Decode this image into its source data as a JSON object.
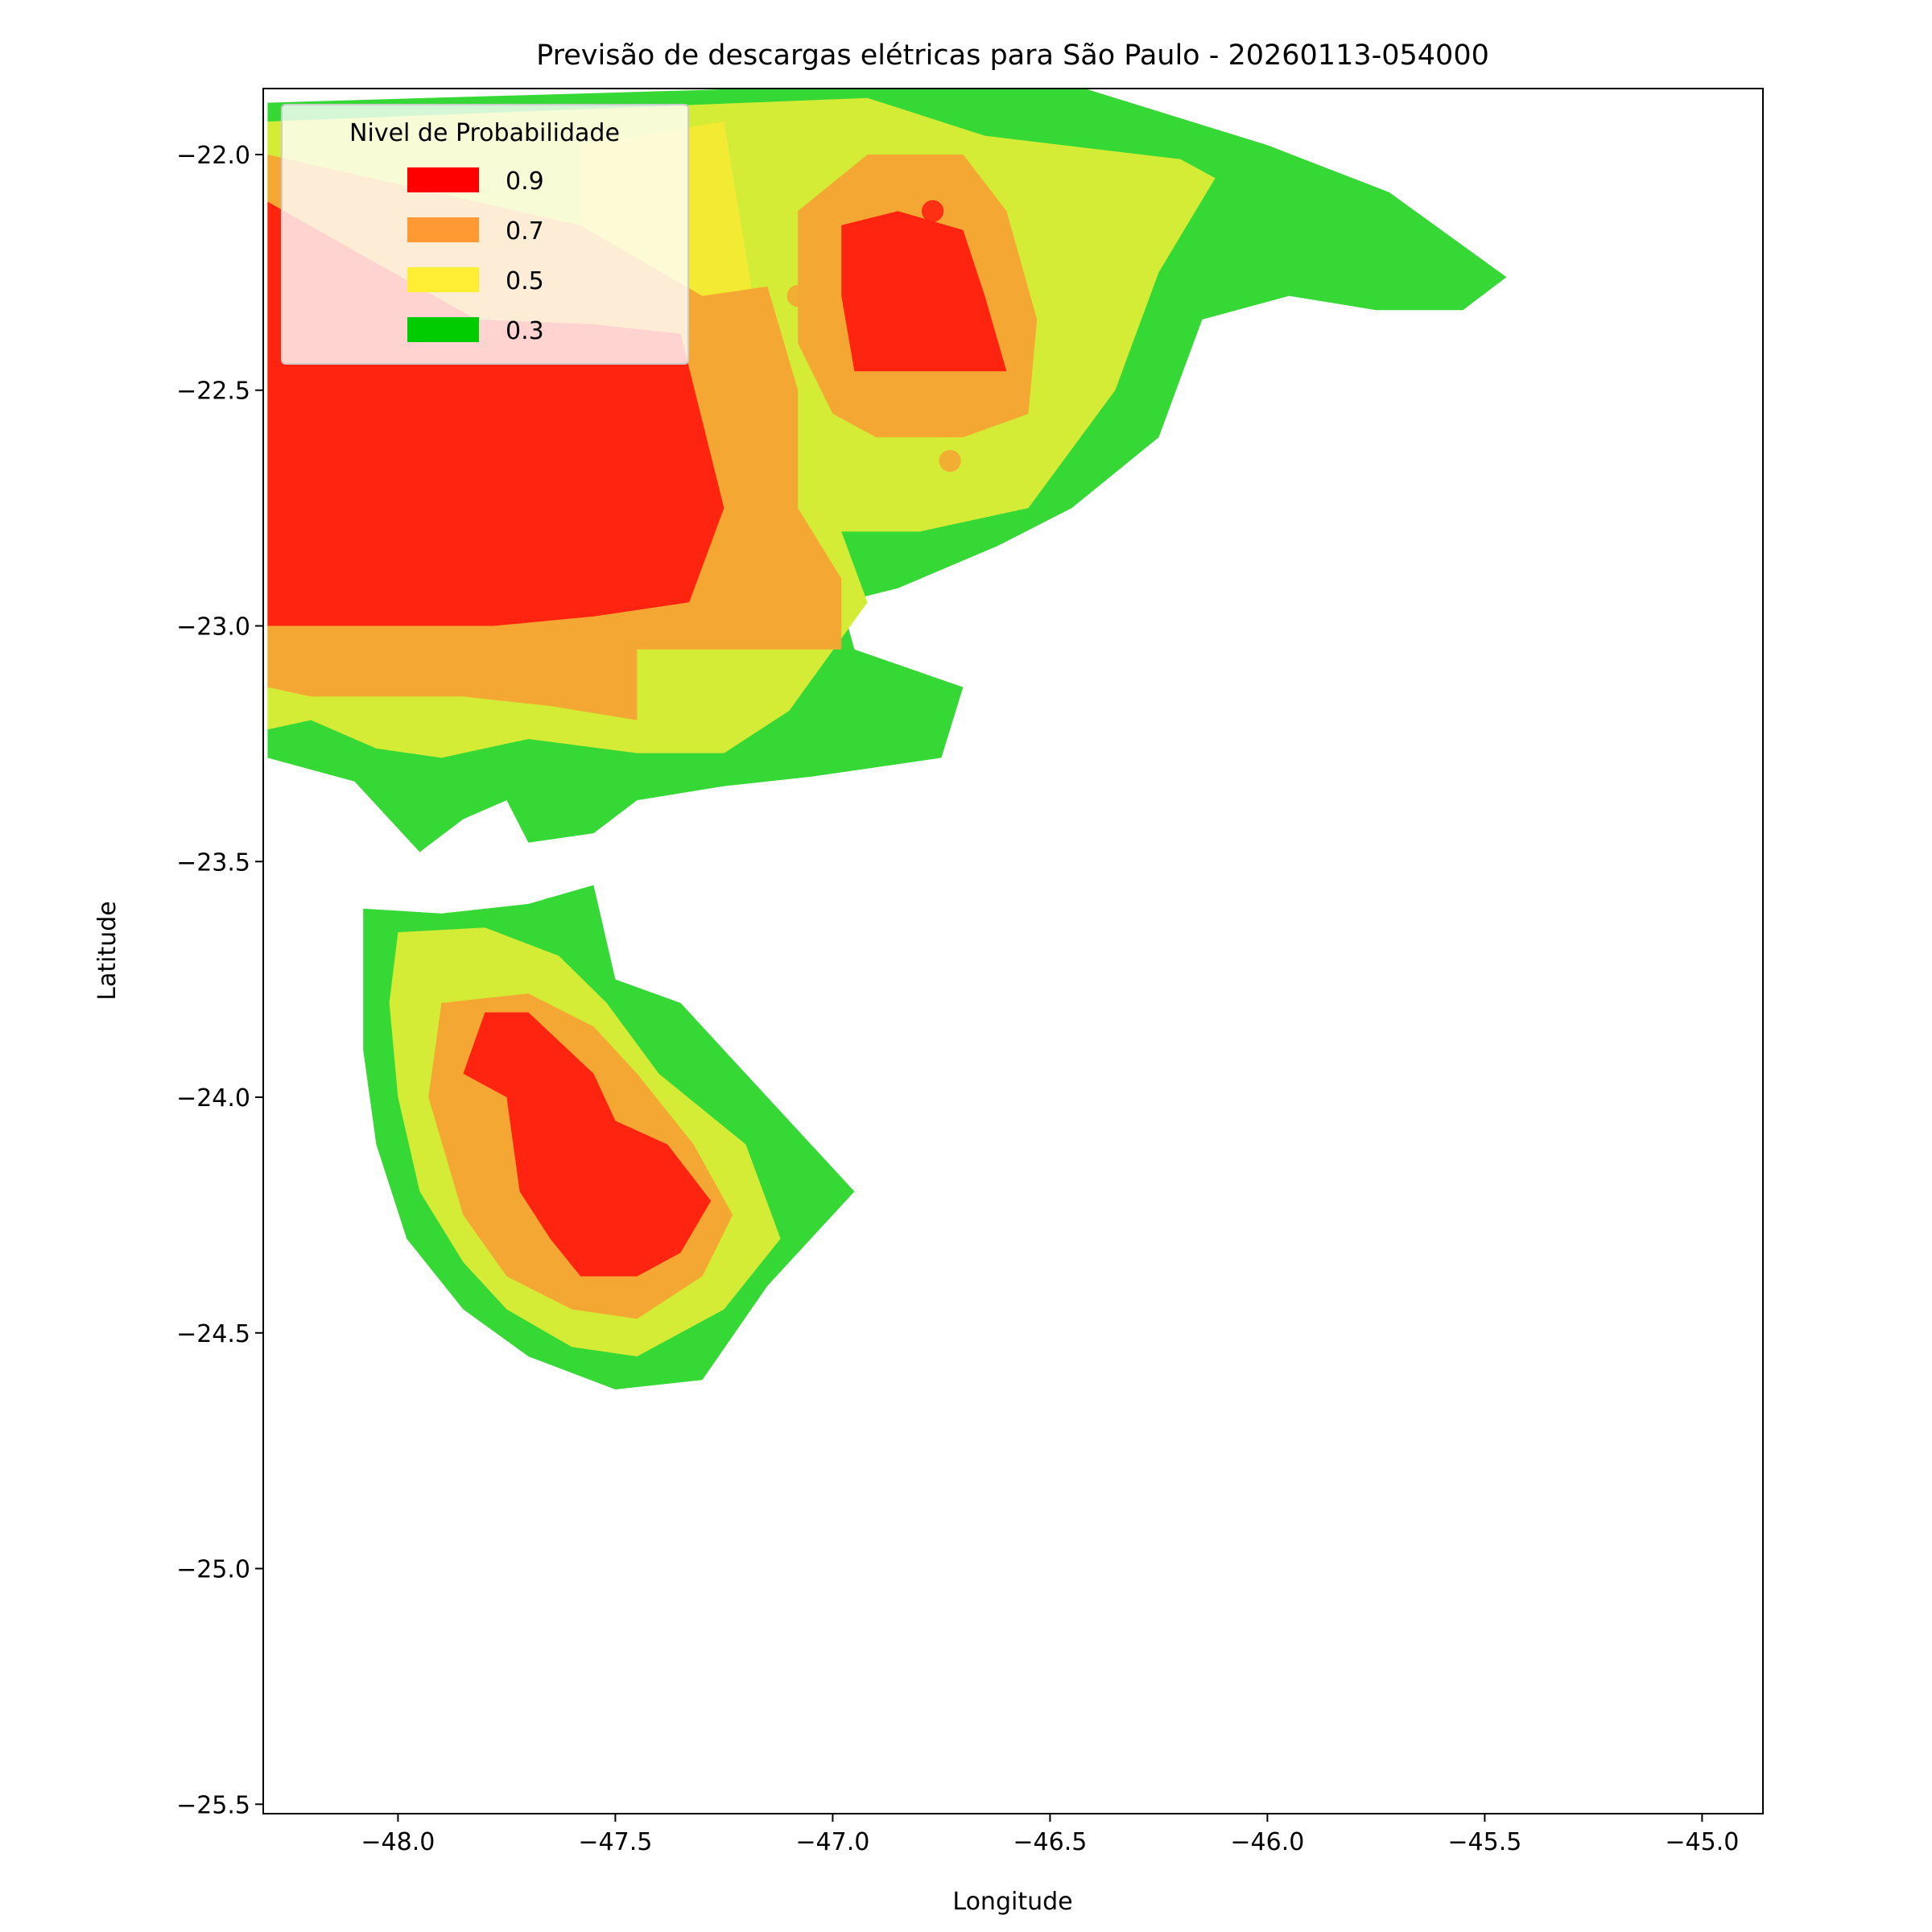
{
  "chart_data": {
    "type": "heatmap",
    "title": "Previsão de descargas elétricas para São Paulo - 20260113-054000",
    "xlabel": "Longitude",
    "ylabel": "Latitude",
    "xlim": [
      -48.31,
      -44.86
    ],
    "ylim": [
      -25.52,
      -21.86
    ],
    "xticks": [
      -48.0,
      -47.5,
      -47.0,
      -46.5,
      -46.0,
      -45.5,
      -45.0
    ],
    "xtick_labels": [
      "−48.0",
      "−47.5",
      "−47.0",
      "−46.5",
      "−46.0",
      "−45.5",
      "−45.0"
    ],
    "yticks": [
      -22.0,
      -22.5,
      -23.0,
      -23.5,
      -24.0,
      -24.5,
      -25.0,
      -25.5
    ],
    "ytick_labels": [
      "−22.0",
      "−22.5",
      "−23.0",
      "−23.5",
      "−24.0",
      "−24.5",
      "−25.0",
      "−25.5"
    ],
    "grid": false,
    "legend": {
      "title": "Nivel de Probabilidade",
      "placement": "upper-left",
      "entries": [
        {
          "label": "0.9",
          "color": "#ff0000"
        },
        {
          "label": "0.7",
          "color": "#ff9933"
        },
        {
          "label": "0.5",
          "color": "#ffee33"
        },
        {
          "label": "0.3",
          "color": "#00cc00"
        }
      ]
    },
    "level_colors": {
      "0.3": "#36d836",
      "0.5": "#d4ec36",
      "0.7": "#f5a733",
      "0.9": "#ff2410",
      "0.5_bright": "#f3ea33"
    },
    "regions": [
      {
        "level": "0.3",
        "cells": [
          [
            -48.3,
            -21.89
          ],
          [
            -46.82,
            -21.85
          ],
          [
            -46.42,
            -21.86
          ],
          [
            -46.0,
            -21.98
          ],
          [
            -45.72,
            -22.08
          ],
          [
            -45.45,
            -22.26
          ],
          [
            -45.55,
            -22.33
          ],
          [
            -45.75,
            -22.33
          ],
          [
            -45.95,
            -22.3
          ],
          [
            -46.15,
            -22.35
          ],
          [
            -46.25,
            -22.6
          ],
          [
            -46.45,
            -22.75
          ],
          [
            -46.62,
            -22.83
          ],
          [
            -46.85,
            -22.92
          ],
          [
            -46.98,
            -22.95
          ],
          [
            -46.95,
            -23.05
          ],
          [
            -46.7,
            -23.13
          ],
          [
            -46.75,
            -23.28
          ],
          [
            -47.05,
            -23.32
          ],
          [
            -47.25,
            -23.34
          ],
          [
            -47.45,
            -23.37
          ],
          [
            -47.55,
            -23.44
          ],
          [
            -47.7,
            -23.46
          ],
          [
            -47.75,
            -23.37
          ],
          [
            -47.85,
            -23.41
          ],
          [
            -47.95,
            -23.48
          ],
          [
            -48.0,
            -23.43
          ],
          [
            -48.1,
            -23.33
          ],
          [
            -48.3,
            -23.28
          ]
        ]
      },
      {
        "level": "0.5",
        "cells": [
          [
            -48.3,
            -21.93
          ],
          [
            -46.92,
            -21.88
          ],
          [
            -46.65,
            -21.96
          ],
          [
            -46.2,
            -22.01
          ],
          [
            -46.12,
            -22.05
          ],
          [
            -46.25,
            -22.25
          ],
          [
            -46.35,
            -22.5
          ],
          [
            -46.55,
            -22.75
          ],
          [
            -46.8,
            -22.8
          ],
          [
            -46.98,
            -22.8
          ],
          [
            -46.92,
            -22.95
          ],
          [
            -47.1,
            -23.18
          ],
          [
            -47.25,
            -23.27
          ],
          [
            -47.45,
            -23.27
          ],
          [
            -47.7,
            -23.24
          ],
          [
            -47.9,
            -23.28
          ],
          [
            -48.05,
            -23.26
          ],
          [
            -48.2,
            -23.2
          ],
          [
            -48.3,
            -23.22
          ]
        ]
      },
      {
        "level": "0.5_bright",
        "cells": [
          [
            -47.58,
            -21.98
          ],
          [
            -47.25,
            -21.93
          ],
          [
            -47.18,
            -22.32
          ],
          [
            -47.45,
            -22.3
          ],
          [
            -47.58,
            -22.2
          ]
        ]
      },
      {
        "level": "0.7",
        "cells": [
          [
            -48.3,
            -22.0
          ],
          [
            -47.58,
            -22.15
          ],
          [
            -47.3,
            -22.3
          ],
          [
            -47.15,
            -22.28
          ],
          [
            -47.08,
            -22.5
          ],
          [
            -47.08,
            -22.75
          ],
          [
            -46.98,
            -22.9
          ],
          [
            -46.98,
            -23.05
          ],
          [
            -47.25,
            -23.05
          ],
          [
            -47.45,
            -23.05
          ],
          [
            -47.45,
            -23.2
          ],
          [
            -47.65,
            -23.17
          ],
          [
            -47.85,
            -23.15
          ],
          [
            -48.05,
            -23.15
          ],
          [
            -48.2,
            -23.15
          ],
          [
            -48.3,
            -23.13
          ]
        ]
      },
      {
        "level": "0.7",
        "cells": [
          [
            -47.08,
            -22.12
          ],
          [
            -46.92,
            -22.0
          ],
          [
            -46.7,
            -22.0
          ],
          [
            -46.6,
            -22.12
          ],
          [
            -46.53,
            -22.35
          ],
          [
            -46.55,
            -22.55
          ],
          [
            -46.7,
            -22.6
          ],
          [
            -46.9,
            -22.6
          ],
          [
            -47.0,
            -22.55
          ],
          [
            -47.08,
            -22.4
          ]
        ]
      },
      {
        "level": "0.9",
        "cells": [
          [
            -48.3,
            -22.1
          ],
          [
            -47.82,
            -22.35
          ],
          [
            -47.55,
            -22.36
          ],
          [
            -47.35,
            -22.38
          ],
          [
            -47.25,
            -22.75
          ],
          [
            -47.33,
            -22.95
          ],
          [
            -47.55,
            -22.98
          ],
          [
            -47.78,
            -23.0
          ],
          [
            -47.95,
            -23.0
          ],
          [
            -48.15,
            -23.0
          ],
          [
            -48.3,
            -23.0
          ]
        ]
      },
      {
        "level": "0.9",
        "cells": [
          [
            -46.98,
            -22.15
          ],
          [
            -46.85,
            -22.12
          ],
          [
            -46.7,
            -22.16
          ],
          [
            -46.65,
            -22.3
          ],
          [
            -46.6,
            -22.46
          ],
          [
            -46.8,
            -22.46
          ],
          [
            -46.95,
            -22.46
          ],
          [
            -46.98,
            -22.3
          ]
        ]
      },
      {
        "level": "0.3",
        "cells": [
          [
            -48.08,
            -23.6
          ],
          [
            -47.9,
            -23.61
          ],
          [
            -47.7,
            -23.59
          ],
          [
            -47.55,
            -23.55
          ],
          [
            -47.5,
            -23.75
          ],
          [
            -47.35,
            -23.8
          ],
          [
            -47.25,
            -23.9
          ],
          [
            -47.05,
            -24.1
          ],
          [
            -46.95,
            -24.2
          ],
          [
            -47.15,
            -24.4
          ],
          [
            -47.3,
            -24.6
          ],
          [
            -47.5,
            -24.62
          ],
          [
            -47.7,
            -24.55
          ],
          [
            -47.85,
            -24.45
          ],
          [
            -47.98,
            -24.3
          ],
          [
            -48.05,
            -24.1
          ],
          [
            -48.08,
            -23.9
          ]
        ]
      },
      {
        "level": "0.5",
        "cells": [
          [
            -48.0,
            -23.65
          ],
          [
            -47.8,
            -23.64
          ],
          [
            -47.63,
            -23.7
          ],
          [
            -47.52,
            -23.8
          ],
          [
            -47.4,
            -23.95
          ],
          [
            -47.2,
            -24.1
          ],
          [
            -47.12,
            -24.3
          ],
          [
            -47.25,
            -24.45
          ],
          [
            -47.45,
            -24.55
          ],
          [
            -47.6,
            -24.53
          ],
          [
            -47.75,
            -24.45
          ],
          [
            -47.85,
            -24.35
          ],
          [
            -47.95,
            -24.2
          ],
          [
            -48.0,
            -24.0
          ],
          [
            -48.02,
            -23.8
          ]
        ]
      },
      {
        "level": "0.7",
        "cells": [
          [
            -47.9,
            -23.8
          ],
          [
            -47.7,
            -23.78
          ],
          [
            -47.55,
            -23.85
          ],
          [
            -47.45,
            -23.95
          ],
          [
            -47.32,
            -24.1
          ],
          [
            -47.23,
            -24.25
          ],
          [
            -47.3,
            -24.38
          ],
          [
            -47.45,
            -24.47
          ],
          [
            -47.6,
            -24.45
          ],
          [
            -47.75,
            -24.38
          ],
          [
            -47.85,
            -24.25
          ],
          [
            -47.93,
            -24.0
          ]
        ]
      },
      {
        "level": "0.9",
        "cells": [
          [
            -47.8,
            -23.82
          ],
          [
            -47.7,
            -23.82
          ],
          [
            -47.55,
            -23.95
          ],
          [
            -47.5,
            -24.05
          ],
          [
            -47.38,
            -24.1
          ],
          [
            -47.28,
            -24.22
          ],
          [
            -47.35,
            -24.33
          ],
          [
            -47.45,
            -24.38
          ],
          [
            -47.58,
            -24.38
          ],
          [
            -47.65,
            -24.3
          ],
          [
            -47.72,
            -24.2
          ],
          [
            -47.75,
            -24.0
          ],
          [
            -47.85,
            -23.95
          ]
        ]
      }
    ],
    "points": [
      {
        "lon": -46.77,
        "lat": -22.12,
        "level": "0.9"
      },
      {
        "lon": -47.08,
        "lat": -22.3,
        "level": "0.7"
      },
      {
        "lon": -46.73,
        "lat": -22.65,
        "level": "0.7"
      },
      {
        "lon": -47.65,
        "lat": -23.6,
        "level": "0.3"
      }
    ]
  }
}
